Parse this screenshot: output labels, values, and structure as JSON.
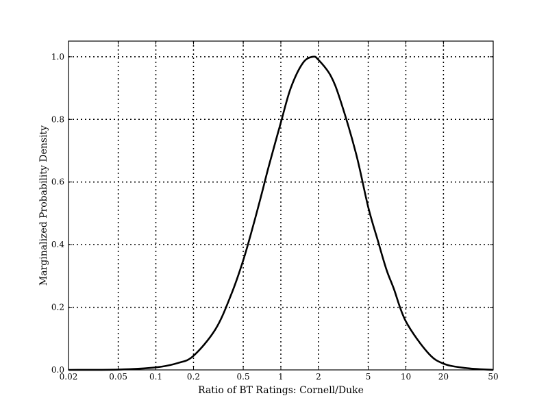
{
  "chart_data": {
    "type": "line",
    "title": "",
    "xlabel": "Ratio of BT Ratings: Cornell/Duke",
    "ylabel": "Marginalized Probability Density",
    "xscale": "log",
    "xlim": [
      0.02,
      50
    ],
    "ylim": [
      0.0,
      1.05
    ],
    "grid": true,
    "legend": "none",
    "x_ticks": [
      0.02,
      0.05,
      0.1,
      0.2,
      0.5,
      1,
      2,
      5,
      10,
      20,
      50
    ],
    "x_tick_labels": [
      "0.02",
      "0.05",
      "0.1",
      "0.2",
      "0.5",
      "1",
      "2",
      "5",
      "10",
      "20",
      "50"
    ],
    "y_ticks": [
      0.0,
      0.2,
      0.4,
      0.6,
      0.8,
      1.0
    ],
    "y_tick_labels": [
      "0.0",
      "0.2",
      "0.4",
      "0.6",
      "0.8",
      "1.0"
    ],
    "series": [
      {
        "color": "#000000",
        "x": [
          0.02,
          0.05,
          0.1,
          0.15,
          0.2,
          0.3,
          0.4,
          0.5,
          0.6,
          0.7,
          0.8,
          1.0,
          1.2,
          1.5,
          1.8,
          2.0,
          2.5,
          3.0,
          4.0,
          5.0,
          6.0,
          7.0,
          8.0,
          10.0,
          15.0,
          20.0,
          30.0,
          50.0
        ],
        "values": [
          0.0,
          0.001,
          0.008,
          0.022,
          0.045,
          0.13,
          0.24,
          0.35,
          0.46,
          0.56,
          0.65,
          0.79,
          0.9,
          0.98,
          1.0,
          0.99,
          0.94,
          0.86,
          0.69,
          0.52,
          0.41,
          0.32,
          0.26,
          0.155,
          0.055,
          0.02,
          0.006,
          0.0
        ]
      }
    ]
  }
}
